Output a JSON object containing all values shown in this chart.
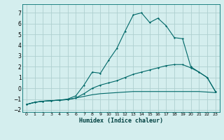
{
  "xlabel": "Humidex (Indice chaleur)",
  "bg_color": "#d4eeee",
  "grid_color": "#aed0d0",
  "line_color": "#006868",
  "xlim": [
    -0.5,
    23.5
  ],
  "ylim": [
    -2.2,
    7.8
  ],
  "xticks": [
    0,
    1,
    2,
    3,
    4,
    5,
    6,
    7,
    8,
    9,
    10,
    11,
    12,
    13,
    14,
    15,
    16,
    17,
    18,
    19,
    20,
    21,
    22,
    23
  ],
  "yticks": [
    -2,
    -1,
    0,
    1,
    2,
    3,
    4,
    5,
    6,
    7
  ],
  "line1_x": [
    0,
    1,
    2,
    3,
    4,
    5,
    6,
    7,
    8,
    9,
    10,
    11,
    12,
    13,
    14,
    15,
    16,
    17,
    18,
    19,
    20,
    21,
    22,
    23
  ],
  "line1_y": [
    -1.5,
    -1.3,
    -1.2,
    -1.15,
    -1.1,
    -1.05,
    -0.9,
    -0.75,
    -0.6,
    -0.5,
    -0.45,
    -0.4,
    -0.35,
    -0.3,
    -0.3,
    -0.3,
    -0.3,
    -0.3,
    -0.3,
    -0.3,
    -0.3,
    -0.3,
    -0.35,
    -0.4
  ],
  "line2_x": [
    0,
    1,
    2,
    3,
    4,
    5,
    6,
    7,
    8,
    9,
    10,
    11,
    12,
    13,
    14,
    15,
    16,
    17,
    18,
    19,
    20,
    21,
    22,
    23
  ],
  "line2_y": [
    -1.5,
    -1.3,
    -1.2,
    -1.15,
    -1.1,
    -1.05,
    -0.9,
    -0.5,
    0.0,
    0.3,
    0.5,
    0.7,
    1.0,
    1.3,
    1.5,
    1.7,
    1.9,
    2.1,
    2.2,
    2.2,
    1.9,
    1.5,
    1.0,
    -0.3
  ],
  "line3_x": [
    0,
    1,
    2,
    3,
    4,
    5,
    6,
    7,
    8,
    9,
    10,
    11,
    12,
    13,
    14,
    15,
    16,
    17,
    18,
    19,
    20,
    21,
    22,
    23
  ],
  "line3_y": [
    -1.5,
    -1.3,
    -1.2,
    -1.15,
    -1.1,
    -1.0,
    -0.7,
    0.3,
    1.5,
    1.4,
    2.6,
    3.7,
    5.3,
    6.8,
    7.0,
    6.1,
    6.5,
    5.8,
    4.7,
    4.6,
    2.0,
    1.5,
    1.0,
    -0.3
  ]
}
